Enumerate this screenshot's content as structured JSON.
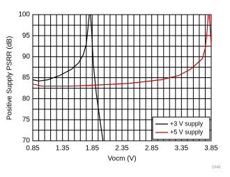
{
  "chart_data": {
    "type": "line",
    "xlabel": "Vocm (V)",
    "ylabel": "Positive Supply PSRR (dB)",
    "xlim": [
      0.85,
      3.85
    ],
    "xticks": [
      0.85,
      1.35,
      1.85,
      2.35,
      2.85,
      3.35,
      3.85
    ],
    "ylim": [
      70,
      100
    ],
    "yticks": [
      70,
      75,
      80,
      85,
      90,
      95,
      100
    ],
    "xgrid": [
      0.95,
      1.05,
      1.15,
      1.25,
      1.45,
      1.55,
      1.65,
      1.75,
      1.95,
      2.05,
      2.15,
      2.25,
      2.45,
      2.55,
      2.65,
      2.75,
      2.95,
      3.05,
      3.15,
      3.25,
      3.45,
      3.55,
      3.65,
      3.75
    ],
    "ygrid": [
      72.5,
      77.5,
      82.5,
      87.5,
      92.5,
      97.5
    ],
    "grid": true,
    "legend": "lower right",
    "note": "D048",
    "series": [
      {
        "name": "+3 V supply",
        "color": "#000000",
        "x": [
          0.85,
          0.95,
          1.1,
          1.3,
          1.5,
          1.62,
          1.7,
          1.75,
          1.78,
          1.8,
          1.82,
          1.84,
          1.87,
          1.92,
          1.97,
          2.0,
          2.03
        ],
        "values": [
          84.5,
          84.2,
          84.5,
          85.5,
          87,
          88.5,
          90.5,
          93,
          97,
          100,
          100,
          96,
          88,
          81,
          76,
          73,
          70
        ]
      },
      {
        "name": "+5 V supply",
        "color": "#cc0000",
        "x": [
          0.85,
          1.0,
          1.5,
          2.0,
          2.5,
          3.0,
          3.3,
          3.5,
          3.62,
          3.7,
          3.75,
          3.78,
          3.8,
          3.82,
          3.84,
          3.85
        ],
        "values": [
          83.5,
          83,
          83,
          83.3,
          83.7,
          84.5,
          85.5,
          87,
          88.5,
          89.5,
          92,
          96,
          100,
          100,
          95,
          93
        ]
      }
    ]
  }
}
